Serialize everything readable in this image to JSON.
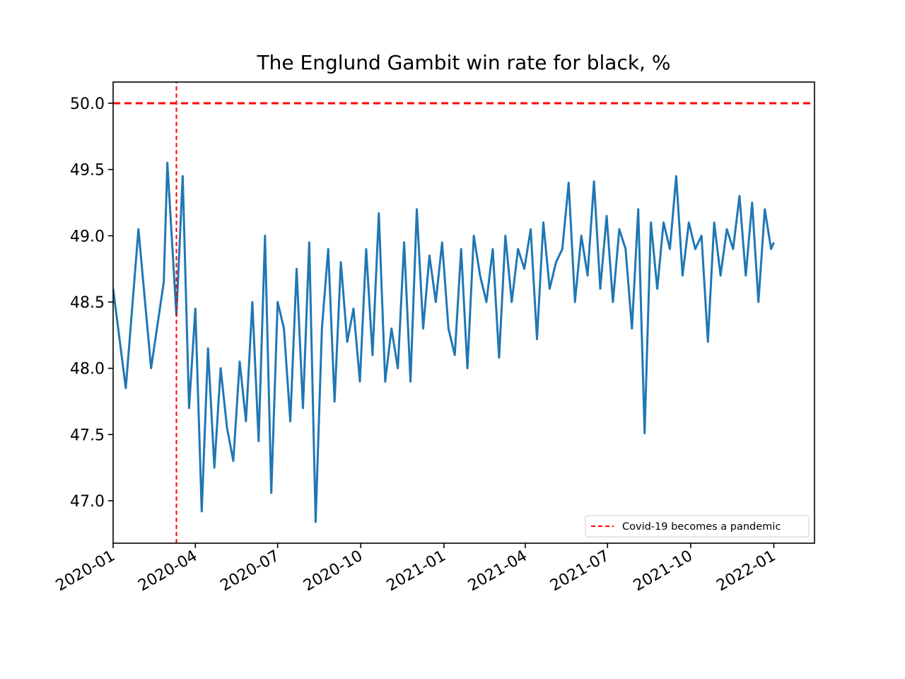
{
  "chart_data": {
    "type": "line",
    "title": "The Englund Gambit win rate for black, %",
    "xlabel": "",
    "ylabel": "",
    "x_range": [
      "2020-01-01",
      "2022-02-15"
    ],
    "ylim": [
      46.68,
      50.16
    ],
    "x_ticks": [
      {
        "date": "2020-01-01",
        "label": "2020-01"
      },
      {
        "date": "2020-04-01",
        "label": "2020-04"
      },
      {
        "date": "2020-07-01",
        "label": "2020-07"
      },
      {
        "date": "2020-10-01",
        "label": "2020-10"
      },
      {
        "date": "2021-01-01",
        "label": "2021-01"
      },
      {
        "date": "2021-04-01",
        "label": "2021-04"
      },
      {
        "date": "2021-07-01",
        "label": "2021-07"
      },
      {
        "date": "2021-10-01",
        "label": "2021-10"
      },
      {
        "date": "2022-01-01",
        "label": "2022-01"
      }
    ],
    "y_ticks": [
      {
        "value": 47.0,
        "label": "47.0"
      },
      {
        "value": 47.5,
        "label": "47.5"
      },
      {
        "value": 48.0,
        "label": "48.0"
      },
      {
        "value": 48.5,
        "label": "48.5"
      },
      {
        "value": 49.0,
        "label": "49.0"
      },
      {
        "value": 49.5,
        "label": "49.5"
      },
      {
        "value": 50.0,
        "label": "50.0"
      }
    ],
    "grid": false,
    "legend_position": "bottom-right",
    "series": [
      {
        "name": "",
        "color": "#1f77b4",
        "x": [
          "2020-01-01",
          "2020-01-15",
          "2020-01-29",
          "2020-02-12",
          "2020-02-26",
          "2020-03-01",
          "2020-03-11",
          "2020-03-18",
          "2020-03-25",
          "2020-04-01",
          "2020-04-08",
          "2020-04-15",
          "2020-04-22",
          "2020-04-29",
          "2020-05-06",
          "2020-05-13",
          "2020-05-20",
          "2020-05-27",
          "2020-06-03",
          "2020-06-10",
          "2020-06-17",
          "2020-06-24",
          "2020-07-01",
          "2020-07-08",
          "2020-07-15",
          "2020-07-22",
          "2020-07-29",
          "2020-08-05",
          "2020-08-12",
          "2020-08-19",
          "2020-08-26",
          "2020-09-02",
          "2020-09-09",
          "2020-09-16",
          "2020-09-23",
          "2020-09-30",
          "2020-10-07",
          "2020-10-14",
          "2020-10-21",
          "2020-10-28",
          "2020-11-04",
          "2020-11-11",
          "2020-11-18",
          "2020-11-25",
          "2020-12-02",
          "2020-12-09",
          "2020-12-16",
          "2020-12-23",
          "2020-12-30",
          "2021-01-06",
          "2021-01-13",
          "2021-01-20",
          "2021-01-27",
          "2021-02-03",
          "2021-02-10",
          "2021-02-17",
          "2021-02-24",
          "2021-03-03",
          "2021-03-10",
          "2021-03-17",
          "2021-03-24",
          "2021-03-31",
          "2021-04-07",
          "2021-04-14",
          "2021-04-21",
          "2021-04-28",
          "2021-05-05",
          "2021-05-12",
          "2021-05-19",
          "2021-05-26",
          "2021-06-02",
          "2021-06-09",
          "2021-06-16",
          "2021-06-23",
          "2021-06-30",
          "2021-07-07",
          "2021-07-14",
          "2021-07-21",
          "2021-07-28",
          "2021-08-04",
          "2021-08-11",
          "2021-08-18",
          "2021-08-25",
          "2021-09-01",
          "2021-09-08",
          "2021-09-15",
          "2021-09-22",
          "2021-09-29",
          "2021-10-06",
          "2021-10-13",
          "2021-10-20",
          "2021-10-27",
          "2021-11-03",
          "2021-11-10",
          "2021-11-17",
          "2021-11-24",
          "2021-12-01",
          "2021-12-08",
          "2021-12-15",
          "2021-12-22",
          "2021-12-29",
          "2022-01-01"
        ],
        "values": [
          48.6,
          47.85,
          49.05,
          48.0,
          48.65,
          49.55,
          48.4,
          49.45,
          47.7,
          48.45,
          46.92,
          48.15,
          47.25,
          48.0,
          47.55,
          47.3,
          48.05,
          47.6,
          48.5,
          47.45,
          49.0,
          47.06,
          48.5,
          48.3,
          47.6,
          48.75,
          47.7,
          48.95,
          46.84,
          48.3,
          48.9,
          47.75,
          48.8,
          48.2,
          48.45,
          47.9,
          48.9,
          48.1,
          49.17,
          47.9,
          48.3,
          48.0,
          48.95,
          47.9,
          49.2,
          48.3,
          48.85,
          48.5,
          48.95,
          48.3,
          48.1,
          48.9,
          48.0,
          49.0,
          48.7,
          48.5,
          48.9,
          48.08,
          49.0,
          48.5,
          48.9,
          48.75,
          49.05,
          48.22,
          49.1,
          48.6,
          48.8,
          48.9,
          49.4,
          48.5,
          49.0,
          48.7,
          49.41,
          48.6,
          49.15,
          48.5,
          49.05,
          48.9,
          48.3,
          49.2,
          47.51,
          49.1,
          48.6,
          49.1,
          48.9,
          49.45,
          48.7,
          49.1,
          48.9,
          49.0,
          48.2,
          49.1,
          48.7,
          49.05,
          48.9,
          49.3,
          48.7,
          49.25,
          48.5,
          49.2,
          48.9,
          48.95
        ],
        "label": ""
      },
      {
        "name": "Covid-19 becomes a pandemic",
        "color": "#ff0000",
        "style": "dashed",
        "x": [
          "2020-03-11",
          "2020-03-11"
        ],
        "values": [
          46.68,
          50.16
        ]
      },
      {
        "name": "",
        "color": "#ff0000",
        "style": "dashed",
        "x": [
          "2020-01-01",
          "2022-02-15"
        ],
        "values": [
          50.0,
          50.0
        ]
      }
    ]
  }
}
